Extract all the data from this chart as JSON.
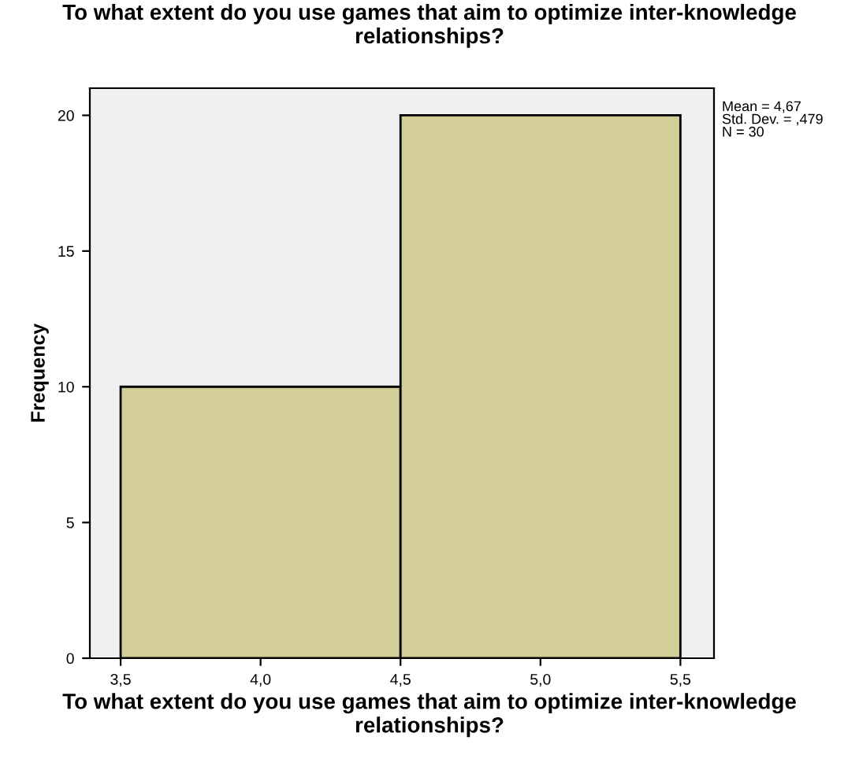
{
  "chart_data": {
    "type": "histogram",
    "title": "To what extent do you use games that aim to optimize inter-knowledge relationships?",
    "xlabel": "To what extent do you use games that aim to optimize inter-knowledge relationships?",
    "ylabel": "Frequency",
    "bins": [
      3.5,
      4.5,
      5.5
    ],
    "values": [
      10,
      20
    ],
    "color": "#d3ce97",
    "xlim": [
      3.39,
      5.62
    ],
    "ylim": [
      0,
      21
    ],
    "xticks": [
      {
        "value": 3.5,
        "label": "3,5"
      },
      {
        "value": 4.0,
        "label": "4,0"
      },
      {
        "value": 4.5,
        "label": "4,5"
      },
      {
        "value": 5.0,
        "label": "5,0"
      },
      {
        "value": 5.5,
        "label": "5,5"
      }
    ],
    "yticks": [
      0,
      5,
      10,
      15,
      20
    ],
    "grid": false,
    "annotations": [
      "Mean = 4,67",
      "Std. Dev. = ,479",
      "N = 30"
    ]
  }
}
